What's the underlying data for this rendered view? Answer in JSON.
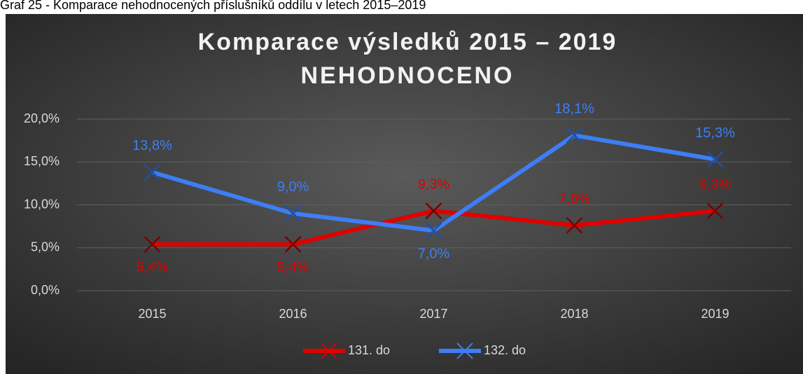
{
  "caption": "Graf 25 - Komparace nehodnocených příslušníků oddílu v letech 2015–2019",
  "chart_data": {
    "type": "line",
    "title": [
      "Komparace výsledků 2015 – 2019",
      "NEHODNOCENO"
    ],
    "categories": [
      "2015",
      "2016",
      "2017",
      "2018",
      "2019"
    ],
    "series": [
      {
        "name": "131. do",
        "color": "#e00000",
        "values": [
          5.4,
          5.4,
          9.3,
          7.6,
          9.3
        ],
        "value_labels": [
          "5,4%",
          "5,4%",
          "9,3%",
          "7,6%",
          "9,3%"
        ]
      },
      {
        "name": "132. do",
        "color": "#3d7ef5",
        "values": [
          13.8,
          9.0,
          7.0,
          18.1,
          15.3
        ],
        "value_labels": [
          "13,8%",
          "9,0%",
          "7,0%",
          "18,1%",
          "15,3%"
        ]
      }
    ],
    "ylim": [
      0,
      20
    ],
    "yticks": [
      {
        "value": 0,
        "label": "0,0%"
      },
      {
        "value": 5,
        "label": "5,0%"
      },
      {
        "value": 10,
        "label": "10,0%"
      },
      {
        "value": 15,
        "label": "15,0%"
      },
      {
        "value": 20,
        "label": "20,0%"
      }
    ],
    "grid": true,
    "legend": "bottom"
  }
}
